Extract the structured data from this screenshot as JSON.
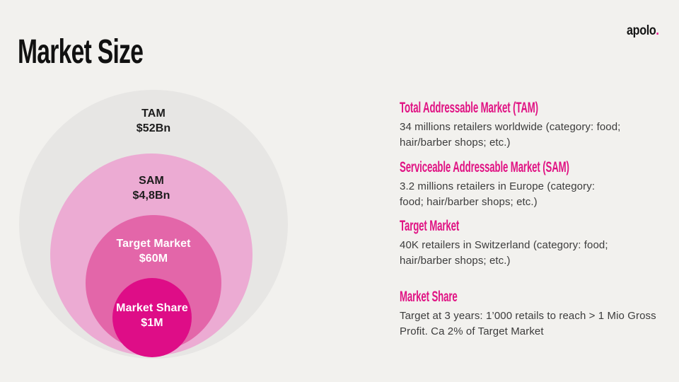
{
  "slide": {
    "title": "Market Size",
    "background_color": "#f2f1ee",
    "logo": {
      "text": "apolo",
      "dot": ".",
      "dot_color": "#ec0f8d",
      "text_color": "#141414"
    }
  },
  "accent_color": "#e01283",
  "chart": {
    "type": "concentric-circles",
    "rings": [
      {
        "id": "tam",
        "label": "TAM",
        "value": "$52Bn",
        "color": "#e7e6e4",
        "text_color": "#1c1c1c"
      },
      {
        "id": "sam",
        "label": "SAM",
        "value": "$4,8Bn",
        "color": "#ecabd3",
        "text_color": "#1c1c1c"
      },
      {
        "id": "target-market",
        "label": "Target Market",
        "value": "$60M",
        "color": "#e366a9",
        "text_color": "#ffffff"
      },
      {
        "id": "market-share",
        "label": "Market Share",
        "value": "$1M",
        "color": "#de0d87",
        "text_color": "#ffffff"
      }
    ]
  },
  "sections": [
    {
      "heading": "Total Addressable Market (TAM)",
      "body": "34 millions retailers worldwide (category: food;\nhair/barber shops; etc.)"
    },
    {
      "heading": "Serviceable Addressable Market (SAM)",
      "body": "3.2 millions retailers in Europe (category:\nfood; hair/barber shops; etc.)"
    },
    {
      "heading": "Target Market",
      "body": "40K retailers in Switzerland (category: food;\nhair/barber shops; etc.)"
    },
    {
      "heading": "Market Share",
      "body": "Target at 3 years: 1’000 retails to reach > 1 Mio Gross\nProfit. Ca 2% of Target Market"
    }
  ]
}
